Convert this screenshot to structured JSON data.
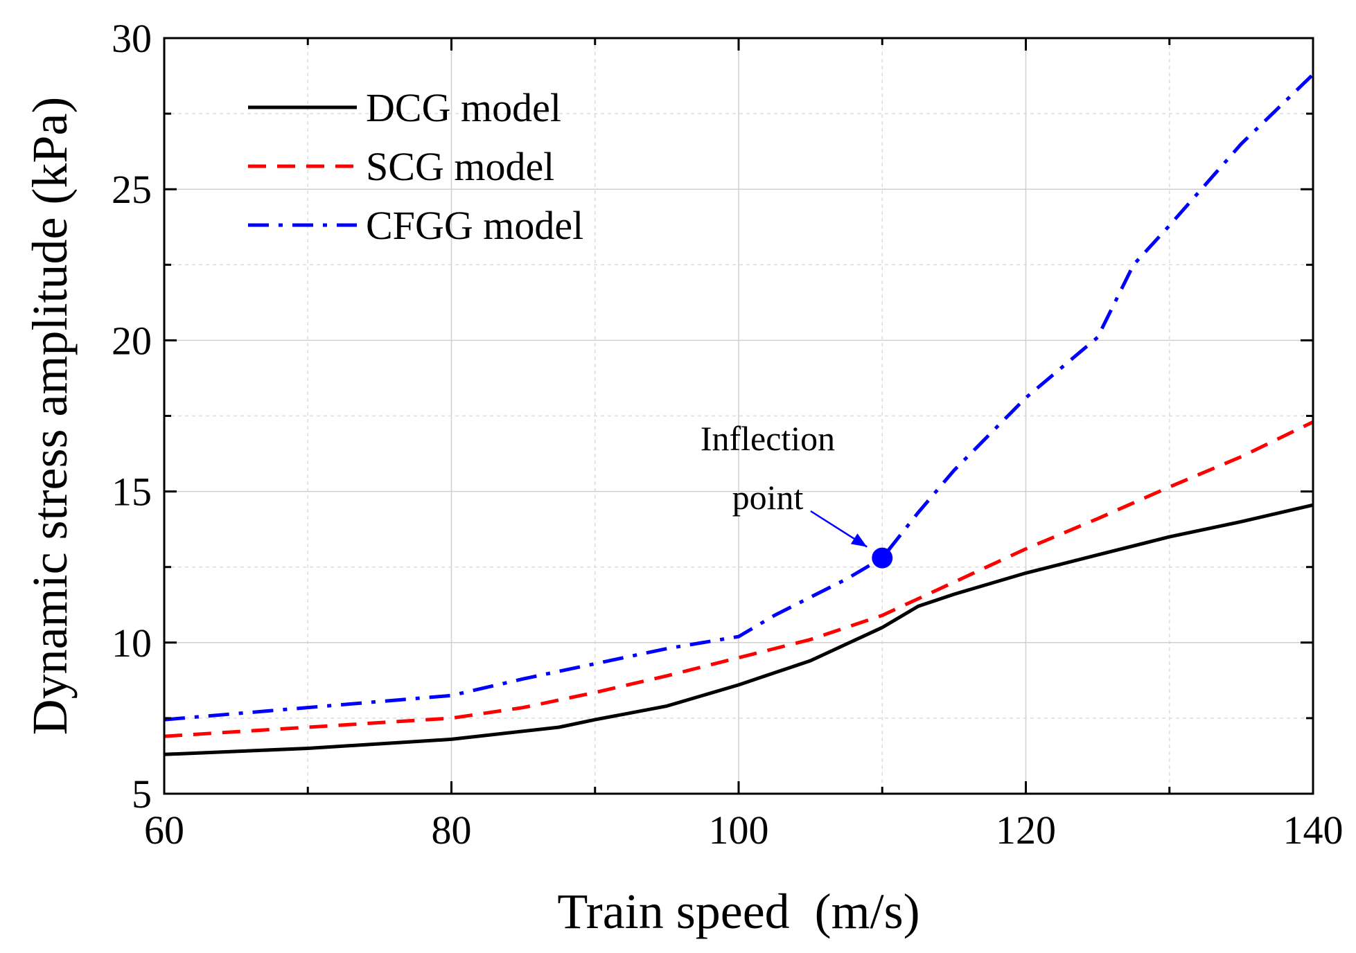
{
  "chart_data": {
    "type": "line",
    "title": "",
    "xlabel": "Train speed  (m/s)",
    "ylabel": "Dynamic stress amplitude (kPa)",
    "xlim": [
      60,
      140
    ],
    "ylim": [
      5,
      30
    ],
    "xticks": [
      60,
      80,
      100,
      120,
      140
    ],
    "xtick_labels": [
      "60",
      "80",
      "100",
      "120",
      "140"
    ],
    "yticks": [
      5,
      10,
      15,
      20,
      25,
      30
    ],
    "ytick_labels": [
      "5",
      "10",
      "15",
      "20",
      "25",
      "30"
    ],
    "grid": true,
    "legend_position": "top-left",
    "series": [
      {
        "name": "DCG model",
        "color": "#000000",
        "dash": "solid",
        "x": [
          60,
          70,
          80,
          87.5,
          90,
          95,
          100,
          102.5,
          105,
          107.5,
          110,
          112.5,
          115,
          120,
          125,
          130,
          135,
          140
        ],
        "y": [
          6.3,
          6.5,
          6.8,
          7.2,
          7.45,
          7.9,
          8.6,
          9.0,
          9.4,
          9.95,
          10.5,
          11.2,
          11.6,
          12.3,
          12.9,
          13.5,
          14.0,
          14.55
        ]
      },
      {
        "name": "SCG model",
        "color": "#ff0000",
        "dash": "dashed",
        "x": [
          60,
          70,
          80,
          85,
          90,
          95,
          100,
          105,
          110,
          115,
          120,
          125,
          130,
          135,
          140
        ],
        "y": [
          6.9,
          7.2,
          7.5,
          7.85,
          8.35,
          8.9,
          9.5,
          10.1,
          10.9,
          12.0,
          13.1,
          14.1,
          15.15,
          16.15,
          17.3
        ]
      },
      {
        "name": "CFGG model",
        "color": "#0000ff",
        "dash": "dashdot",
        "x": [
          60,
          70,
          80,
          85,
          90,
          95,
          100,
          102.5,
          105,
          107.5,
          110,
          112.5,
          115,
          120,
          125,
          127.5,
          130,
          135,
          140
        ],
        "y": [
          7.45,
          7.85,
          8.25,
          8.8,
          9.3,
          9.8,
          10.2,
          10.9,
          11.5,
          12.1,
          12.8,
          14.3,
          15.7,
          18.1,
          20.1,
          22.5,
          23.8,
          26.5,
          28.8
        ]
      }
    ],
    "annotations": [
      {
        "text_lines": [
          "Inflection",
          "point"
        ],
        "point": {
          "x": 110,
          "y": 12.8
        },
        "marker_color": "#0000ff",
        "arrow_color": "#0000ff"
      }
    ]
  }
}
